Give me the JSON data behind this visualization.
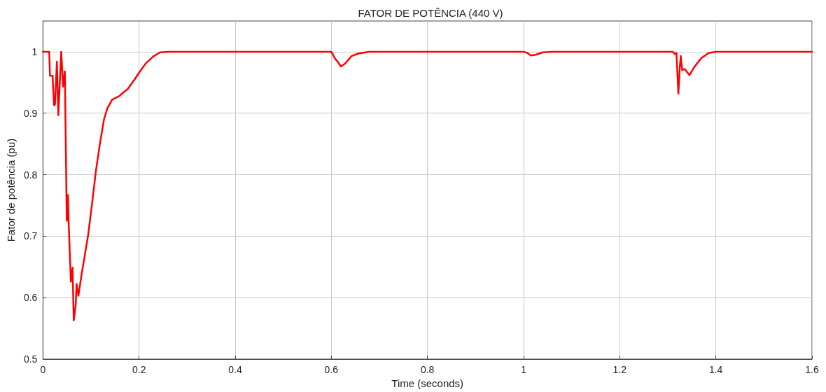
{
  "chart_data": {
    "type": "line",
    "title": "FATOR DE POTÊNCIA (440 V)",
    "xlabel": "Time (seconds)",
    "ylabel": "Fator de potência (pu)",
    "xlim": [
      0,
      1.6
    ],
    "xticks": [
      0,
      0.2,
      0.4,
      0.6,
      0.8,
      1,
      1.2,
      1.4,
      1.6
    ],
    "ylim": [
      0.5,
      1.05
    ],
    "yticks": [
      0.5,
      0.6,
      0.7,
      0.8,
      0.9,
      1
    ],
    "grid": true,
    "marker": "none",
    "line_style": "solid",
    "series": [
      {
        "color": "#ff0000",
        "x": [
          0,
          0.013,
          0.0146,
          0.02,
          0.023,
          0.025,
          0.029,
          0.032,
          0.038,
          0.042,
          0.0456,
          0.0495,
          0.052,
          0.0534,
          0.058,
          0.0616,
          0.064,
          0.068,
          0.07,
          0.0738,
          0.081,
          0.086,
          0.094,
          0.102,
          0.11,
          0.118,
          0.127,
          0.134,
          0.144,
          0.159,
          0.166,
          0.176,
          0.19,
          0.2,
          0.214,
          0.229,
          0.2436,
          0.263,
          0.6,
          0.6075,
          0.612,
          0.62,
          0.629,
          0.642,
          0.656,
          0.678,
          1.0,
          1.008,
          1.015,
          1.025,
          1.04,
          1.06,
          1.31,
          1.315,
          1.318,
          1.322,
          1.325,
          1.327,
          1.33,
          1.335,
          1.345,
          1.355,
          1.37,
          1.385,
          1.4,
          1.6
        ],
        "values": [
          1,
          1,
          0.961,
          0.961,
          0.913,
          0.914,
          0.984,
          0.897,
          1.0,
          0.943,
          0.968,
          0.725,
          0.767,
          0.725,
          0.626,
          0.649,
          0.563,
          0.587,
          0.622,
          0.603,
          0.641,
          0.664,
          0.702,
          0.752,
          0.805,
          0.848,
          0.89,
          0.908,
          0.922,
          0.928,
          0.933,
          0.939,
          0.954,
          0.966,
          0.981,
          0.992,
          0.999,
          1,
          1,
          0.989,
          0.985,
          0.976,
          0.981,
          0.993,
          0.997,
          1,
          1,
          0.998,
          0.994,
          0.995,
          0.999,
          1,
          1,
          0.996,
          0.998,
          0.932,
          0.975,
          0.993,
          0.97,
          0.972,
          0.962,
          0.975,
          0.99,
          0.998,
          1,
          1
        ]
      }
    ]
  }
}
